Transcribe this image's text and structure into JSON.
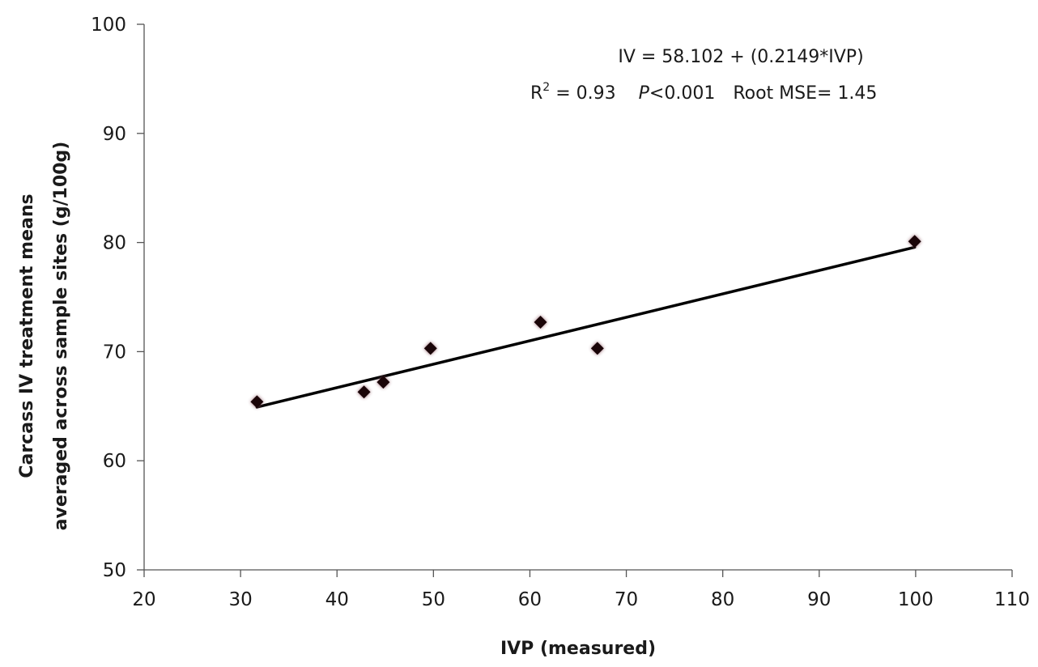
{
  "chart_data": {
    "type": "scatter",
    "xlabel": "IVP (measured)",
    "ylabel_line1": "Carcass IV treatment means",
    "ylabel_line2": "averaged across sample sites (g/100g)",
    "xlim": [
      20,
      110
    ],
    "ylim": [
      50,
      100
    ],
    "xticks": [
      20,
      30,
      40,
      50,
      60,
      70,
      80,
      90,
      100,
      110
    ],
    "yticks": [
      50,
      60,
      70,
      80,
      90,
      100
    ],
    "grid": false,
    "points": [
      {
        "x": 31.7,
        "y": 65.4
      },
      {
        "x": 42.8,
        "y": 66.3
      },
      {
        "x": 44.8,
        "y": 67.2
      },
      {
        "x": 49.7,
        "y": 70.3
      },
      {
        "x": 61.1,
        "y": 72.7
      },
      {
        "x": 67.0,
        "y": 70.3
      },
      {
        "x": 99.9,
        "y": 80.1
      }
    ],
    "regression": {
      "intercept": 58.102,
      "slope": 0.2149,
      "x_range": [
        31.7,
        99.9
      ]
    },
    "annotation": {
      "equation": "IV = 58.102 + (0.2149*IVP)",
      "r_label": "R",
      "r_sup": "2",
      "r_value": " = 0.93",
      "p_label": "P",
      "p_value": "<0.001",
      "rmse": "Root MSE= 1.45"
    },
    "colors": {
      "marker": "#1a0508",
      "marker_glow": "#8a5560",
      "line": "#000000",
      "axis": "#555555"
    }
  }
}
